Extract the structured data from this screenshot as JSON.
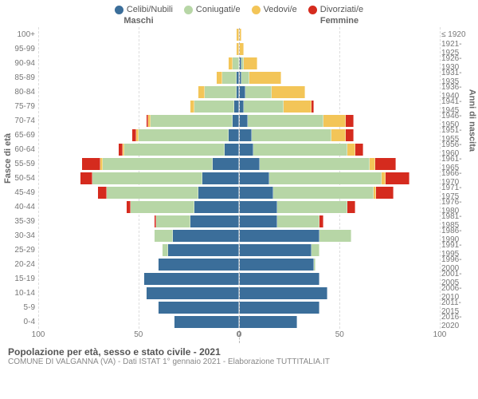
{
  "legend": [
    {
      "label": "Celibi/Nubili",
      "color": "#3b6e9a"
    },
    {
      "label": "Coniugati/e",
      "color": "#b7d6a6"
    },
    {
      "label": "Vedovi/e",
      "color": "#f3c558"
    },
    {
      "label": "Divorziati/e",
      "color": "#d52b1e"
    }
  ],
  "headers": {
    "left": "Maschi",
    "right": "Femmine"
  },
  "axis": {
    "left_label": "Fasce di età",
    "right_label": "Anni di nascita",
    "max": 100,
    "ticks": [
      0,
      50,
      100
    ]
  },
  "title": "Popolazione per età, sesso e stato civile - 2021",
  "subtitle": "COMUNE DI VALGANNA (VA) - Dati ISTAT 1° gennaio 2021 - Elaborazione TUTTITALIA.IT",
  "rows": [
    {
      "age": "100+",
      "year": "≤ 1920",
      "m": [
        0,
        0,
        1,
        0
      ],
      "f": [
        0,
        0,
        1,
        0
      ]
    },
    {
      "age": "95-99",
      "year": "1921-1925",
      "m": [
        0,
        0,
        1,
        0
      ],
      "f": [
        0,
        0,
        2,
        0
      ]
    },
    {
      "age": "90-94",
      "year": "1926-1930",
      "m": [
        0,
        3,
        2,
        0
      ],
      "f": [
        1,
        1,
        7,
        0
      ]
    },
    {
      "age": "85-89",
      "year": "1931-1935",
      "m": [
        1,
        7,
        3,
        0
      ],
      "f": [
        1,
        4,
        16,
        0
      ]
    },
    {
      "age": "80-84",
      "year": "1936-1940",
      "m": [
        1,
        16,
        3,
        0
      ],
      "f": [
        3,
        13,
        17,
        0
      ]
    },
    {
      "age": "75-79",
      "year": "1941-1945",
      "m": [
        2,
        20,
        2,
        0
      ],
      "f": [
        2,
        20,
        14,
        1
      ]
    },
    {
      "age": "70-74",
      "year": "1946-1950",
      "m": [
        3,
        41,
        1,
        1
      ],
      "f": [
        4,
        38,
        11,
        4
      ]
    },
    {
      "age": "65-69",
      "year": "1951-1955",
      "m": [
        5,
        45,
        1,
        2
      ],
      "f": [
        6,
        40,
        7,
        4
      ]
    },
    {
      "age": "60-64",
      "year": "1956-1960",
      "m": [
        7,
        50,
        1,
        2
      ],
      "f": [
        7,
        47,
        4,
        4
      ]
    },
    {
      "age": "55-59",
      "year": "1961-1965",
      "m": [
        13,
        55,
        1,
        9
      ],
      "f": [
        10,
        55,
        3,
        10
      ]
    },
    {
      "age": "50-54",
      "year": "1966-1970",
      "m": [
        18,
        55,
        0,
        6
      ],
      "f": [
        15,
        56,
        2,
        12
      ]
    },
    {
      "age": "45-49",
      "year": "1971-1975",
      "m": [
        20,
        46,
        0,
        4
      ],
      "f": [
        17,
        50,
        1,
        9
      ]
    },
    {
      "age": "40-44",
      "year": "1976-1980",
      "m": [
        22,
        32,
        0,
        2
      ],
      "f": [
        19,
        35,
        0,
        4
      ]
    },
    {
      "age": "35-39",
      "year": "1981-1985",
      "m": [
        24,
        17,
        0,
        1
      ],
      "f": [
        19,
        21,
        0,
        2
      ]
    },
    {
      "age": "30-34",
      "year": "1986-1990",
      "m": [
        33,
        9,
        0,
        0
      ],
      "f": [
        40,
        16,
        0,
        0
      ]
    },
    {
      "age": "25-29",
      "year": "1991-1995",
      "m": [
        35,
        3,
        0,
        0
      ],
      "f": [
        36,
        4,
        0,
        0
      ]
    },
    {
      "age": "20-24",
      "year": "1996-2000",
      "m": [
        40,
        0,
        0,
        0
      ],
      "f": [
        37,
        1,
        0,
        0
      ]
    },
    {
      "age": "15-19",
      "year": "2001-2005",
      "m": [
        47,
        0,
        0,
        0
      ],
      "f": [
        40,
        0,
        0,
        0
      ]
    },
    {
      "age": "10-14",
      "year": "2006-2010",
      "m": [
        46,
        0,
        0,
        0
      ],
      "f": [
        44,
        0,
        0,
        0
      ]
    },
    {
      "age": "5-9",
      "year": "2011-2015",
      "m": [
        40,
        0,
        0,
        0
      ],
      "f": [
        40,
        0,
        0,
        0
      ]
    },
    {
      "age": "0-4",
      "year": "2016-2020",
      "m": [
        32,
        0,
        0,
        0
      ],
      "f": [
        29,
        0,
        0,
        0
      ]
    }
  ]
}
